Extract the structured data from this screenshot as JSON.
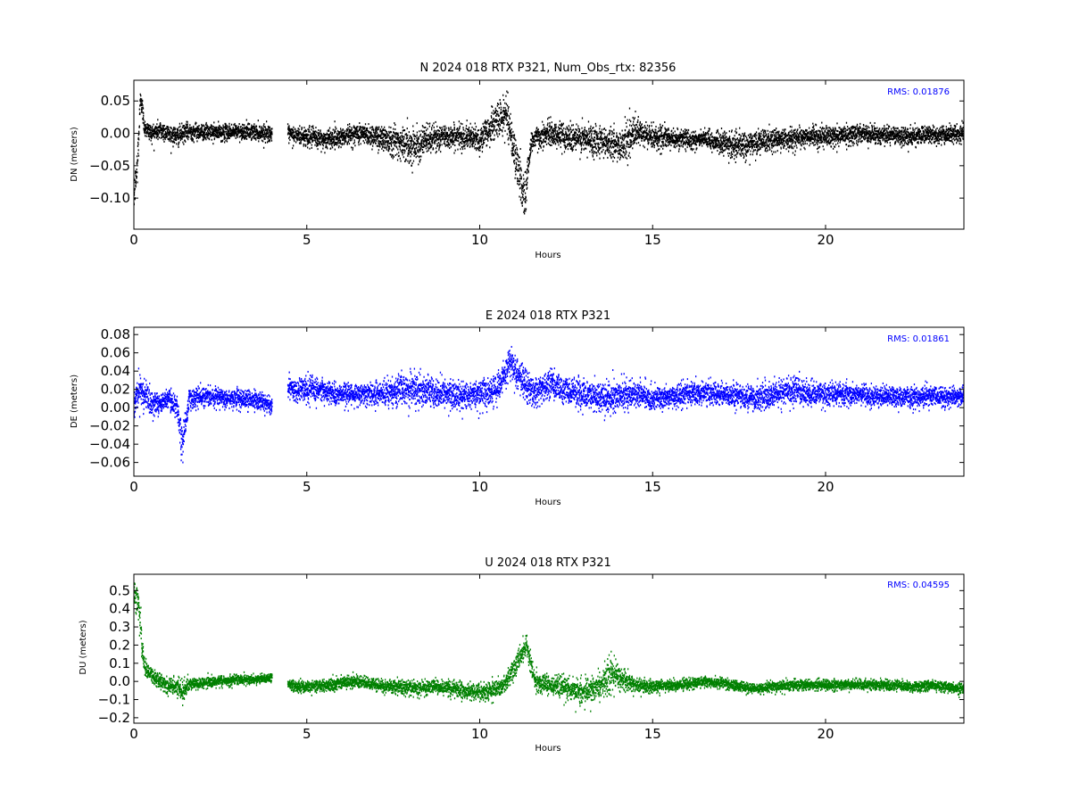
{
  "chart_data": [
    {
      "type": "scatter",
      "title": "N 2024 018 RTX  P321, Num_Obs_rtx: 82356",
      "xlabel": "Hours",
      "ylabel": "DN (meters)",
      "xlim": [
        0,
        24
      ],
      "ylim": [
        -0.148,
        0.082
      ],
      "xticks": [
        0,
        5,
        10,
        15,
        20
      ],
      "yticks": [
        0.05,
        0.0,
        -0.05,
        -0.1
      ],
      "ytick_labels": [
        "0.05",
        "0.00",
        "−0.05",
        "−0.10"
      ],
      "annotation": "RMS:  0.01876",
      "annotation_color": "#0000ff",
      "color": "#000000",
      "gap": [
        4.0,
        4.45
      ],
      "series": [
        {
          "x": [
            0.0,
            0.1,
            0.2,
            0.3,
            0.5,
            0.75,
            1.0,
            1.25,
            1.5,
            1.75,
            2.0,
            2.5,
            3.0,
            3.5,
            4.0,
            4.45,
            5.0,
            5.5,
            6.0,
            6.5,
            7.0,
            7.5,
            8.0,
            8.5,
            9.0,
            9.5,
            10.0,
            10.5,
            10.8,
            11.0,
            11.3,
            11.5,
            12.0,
            12.5,
            13.0,
            13.5,
            14.0,
            14.5,
            15.0,
            15.5,
            16.0,
            16.5,
            17.0,
            17.5,
            18.0,
            18.5,
            19.0,
            19.5,
            20.0,
            20.5,
            21.0,
            21.5,
            22.0,
            22.5,
            23.0,
            23.5,
            24.0
          ],
          "y": [
            -0.1,
            -0.05,
            0.06,
            0.01,
            0.0,
            0.005,
            0.0,
            -0.005,
            0.002,
            0.003,
            0.002,
            0.001,
            0.003,
            0.002,
            0.0,
            -0.002,
            -0.005,
            -0.01,
            -0.005,
            0.0,
            -0.005,
            -0.01,
            -0.02,
            -0.01,
            -0.005,
            -0.005,
            -0.01,
            0.02,
            0.03,
            -0.03,
            -0.1,
            -0.01,
            0.0,
            -0.005,
            -0.01,
            -0.01,
            -0.02,
            0.0,
            -0.005,
            -0.008,
            -0.01,
            -0.01,
            -0.015,
            -0.02,
            -0.015,
            -0.01,
            -0.008,
            -0.005,
            -0.005,
            -0.003,
            0.0,
            -0.002,
            -0.003,
            -0.005,
            -0.002,
            -0.003,
            0.0
          ],
          "spread": [
            0.02,
            0.03,
            0.02,
            0.012,
            0.012,
            0.014,
            0.012,
            0.014,
            0.012,
            0.012,
            0.011,
            0.011,
            0.011,
            0.011,
            0.011,
            0.012,
            0.013,
            0.014,
            0.013,
            0.014,
            0.016,
            0.022,
            0.024,
            0.02,
            0.016,
            0.016,
            0.018,
            0.024,
            0.026,
            0.03,
            0.03,
            0.016,
            0.016,
            0.018,
            0.022,
            0.02,
            0.024,
            0.022,
            0.016,
            0.014,
            0.013,
            0.013,
            0.016,
            0.018,
            0.016,
            0.015,
            0.014,
            0.013,
            0.013,
            0.013,
            0.013,
            0.012,
            0.012,
            0.012,
            0.012,
            0.012,
            0.012
          ]
        }
      ]
    },
    {
      "type": "scatter",
      "title": "E 2024 018 RTX  P321",
      "xlabel": "Hours",
      "ylabel": "DE (meters)",
      "xlim": [
        0,
        24
      ],
      "ylim": [
        -0.075,
        0.088
      ],
      "xticks": [
        0,
        5,
        10,
        15,
        20
      ],
      "yticks": [
        0.08,
        0.06,
        0.04,
        0.02,
        0.0,
        -0.02,
        -0.04,
        -0.06
      ],
      "ytick_labels": [
        "0.08",
        "0.06",
        "0.04",
        "0.02",
        "0.00",
        "−0.02",
        "−0.04",
        "−0.06"
      ],
      "annotation": "RMS:  0.01861",
      "annotation_color": "#0000ff",
      "color": "#0000ff",
      "gap": [
        4.0,
        4.45
      ],
      "series": [
        {
          "x": [
            0.0,
            0.2,
            0.5,
            0.75,
            1.0,
            1.25,
            1.4,
            1.6,
            2.0,
            2.5,
            3.0,
            3.5,
            4.0,
            4.45,
            5.0,
            5.5,
            6.0,
            6.5,
            7.0,
            7.5,
            8.0,
            8.5,
            9.0,
            9.5,
            10.0,
            10.5,
            10.9,
            11.2,
            11.6,
            12.0,
            12.5,
            13.0,
            13.5,
            14.0,
            14.5,
            15.0,
            15.5,
            16.0,
            16.5,
            17.0,
            17.5,
            18.0,
            18.5,
            19.0,
            19.5,
            20.0,
            20.5,
            21.0,
            21.5,
            22.0,
            22.5,
            23.0,
            23.5,
            24.0
          ],
          "y": [
            0.0,
            0.02,
            0.005,
            0.005,
            0.01,
            0.0,
            -0.04,
            0.01,
            0.012,
            0.012,
            0.01,
            0.008,
            0.002,
            0.02,
            0.02,
            0.018,
            0.015,
            0.015,
            0.015,
            0.018,
            0.02,
            0.018,
            0.015,
            0.012,
            0.015,
            0.02,
            0.05,
            0.03,
            0.015,
            0.025,
            0.02,
            0.015,
            0.01,
            0.012,
            0.015,
            0.01,
            0.012,
            0.015,
            0.015,
            0.015,
            0.012,
            0.01,
            0.015,
            0.02,
            0.015,
            0.015,
            0.015,
            0.015,
            0.012,
            0.012,
            0.012,
            0.012,
            0.012,
            0.012
          ],
          "spread": [
            0.012,
            0.018,
            0.012,
            0.01,
            0.01,
            0.012,
            0.02,
            0.01,
            0.009,
            0.009,
            0.009,
            0.009,
            0.009,
            0.01,
            0.013,
            0.01,
            0.01,
            0.011,
            0.012,
            0.014,
            0.015,
            0.014,
            0.014,
            0.014,
            0.014,
            0.015,
            0.016,
            0.018,
            0.015,
            0.014,
            0.014,
            0.015,
            0.015,
            0.014,
            0.013,
            0.01,
            0.01,
            0.011,
            0.011,
            0.011,
            0.011,
            0.012,
            0.012,
            0.013,
            0.012,
            0.011,
            0.011,
            0.01,
            0.01,
            0.01,
            0.01,
            0.01,
            0.01,
            0.01
          ]
        }
      ]
    },
    {
      "type": "scatter",
      "title": "U 2024 018 RTX  P321",
      "xlabel": "Hours",
      "ylabel": "DU (meters)",
      "xlim": [
        0,
        24
      ],
      "ylim": [
        -0.23,
        0.59
      ],
      "xticks": [
        0,
        5,
        10,
        15,
        20
      ],
      "yticks": [
        0.5,
        0.4,
        0.3,
        0.2,
        0.1,
        0.0,
        -0.1,
        -0.2
      ],
      "ytick_labels": [
        "0.5",
        "0.4",
        "0.3",
        "0.2",
        "0.1",
        "0.0",
        "−0.1",
        "−0.2"
      ],
      "annotation": "RMS:  0.04595",
      "annotation_color": "#0000ff",
      "color": "#008000",
      "gap": [
        4.0,
        4.45
      ],
      "series": [
        {
          "x": [
            0.0,
            0.1,
            0.2,
            0.3,
            0.5,
            0.75,
            1.0,
            1.25,
            1.4,
            1.6,
            2.0,
            2.5,
            3.0,
            3.5,
            4.0,
            4.45,
            5.0,
            5.5,
            6.0,
            6.5,
            7.0,
            7.5,
            8.0,
            8.5,
            9.0,
            9.5,
            10.0,
            10.5,
            10.8,
            11.0,
            11.2,
            11.35,
            11.6,
            12.0,
            12.5,
            13.0,
            13.5,
            13.8,
            14.0,
            14.5,
            15.0,
            15.5,
            16.0,
            16.5,
            17.0,
            17.5,
            18.0,
            18.5,
            19.0,
            19.5,
            20.0,
            20.5,
            21.0,
            21.5,
            22.0,
            22.5,
            23.0,
            23.5,
            24.0
          ],
          "y": [
            0.5,
            0.45,
            0.3,
            0.08,
            0.03,
            0.0,
            -0.03,
            -0.03,
            -0.05,
            -0.02,
            -0.01,
            0.0,
            0.01,
            0.01,
            0.02,
            -0.02,
            -0.03,
            -0.02,
            -0.01,
            0.0,
            -0.02,
            -0.03,
            -0.04,
            -0.03,
            -0.03,
            -0.05,
            -0.06,
            -0.04,
            0.0,
            0.08,
            0.15,
            0.2,
            0.0,
            -0.02,
            -0.03,
            -0.06,
            -0.02,
            0.05,
            0.02,
            -0.02,
            -0.03,
            -0.02,
            -0.02,
            0.0,
            -0.01,
            -0.03,
            -0.04,
            -0.03,
            -0.02,
            -0.02,
            -0.02,
            -0.02,
            -0.02,
            -0.02,
            -0.02,
            -0.03,
            -0.02,
            -0.03,
            -0.04
          ],
          "spread": [
            0.06,
            0.08,
            0.08,
            0.04,
            0.04,
            0.04,
            0.04,
            0.04,
            0.06,
            0.03,
            0.025,
            0.025,
            0.025,
            0.02,
            0.02,
            0.025,
            0.03,
            0.03,
            0.03,
            0.03,
            0.03,
            0.035,
            0.035,
            0.035,
            0.035,
            0.04,
            0.04,
            0.045,
            0.045,
            0.05,
            0.05,
            0.05,
            0.05,
            0.045,
            0.05,
            0.06,
            0.06,
            0.1,
            0.06,
            0.04,
            0.03,
            0.025,
            0.025,
            0.03,
            0.025,
            0.025,
            0.025,
            0.025,
            0.025,
            0.025,
            0.025,
            0.025,
            0.025,
            0.025,
            0.025,
            0.025,
            0.025,
            0.025,
            0.025
          ]
        }
      ]
    }
  ]
}
